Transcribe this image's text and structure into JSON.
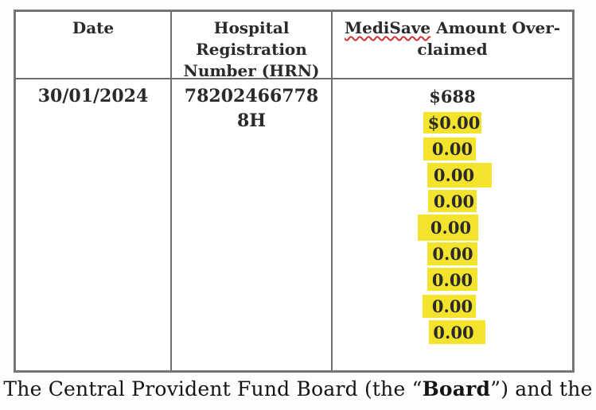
{
  "colors": {
    "highlight": "#f3e32c",
    "squiggle_red": "#cf3333",
    "table_border_gray": "#6f6f6f"
  },
  "table": {
    "columns": [
      {
        "header": "Date"
      },
      {
        "header": "Hospital\nRegistration\nNumber (HRN)"
      },
      {
        "header_parts": {
          "misspelled": "MediSave",
          "rest_line1": " Amount Over-",
          "line2": "claimed"
        }
      }
    ],
    "row": {
      "date": "30/01/2024",
      "hrn": "78202466778\n8H",
      "amounts": [
        {
          "text": "$688",
          "highlight": false
        },
        {
          "text": "$0.00",
          "highlight": true
        },
        {
          "text": "0.00",
          "highlight": true
        },
        {
          "text": "0.00",
          "highlight": true
        },
        {
          "text": "0.00",
          "highlight": true
        },
        {
          "text": "0.00",
          "highlight": true
        },
        {
          "text": "0.00",
          "highlight": true
        },
        {
          "text": "0.00",
          "highlight": true
        },
        {
          "text": "0.00",
          "highlight": true
        },
        {
          "text": "0.00",
          "highlight": true
        }
      ]
    }
  },
  "footer": {
    "prefix": "The Central Provident Fund Board (the “",
    "bold": "Board",
    "suffix": "”) and the"
  }
}
